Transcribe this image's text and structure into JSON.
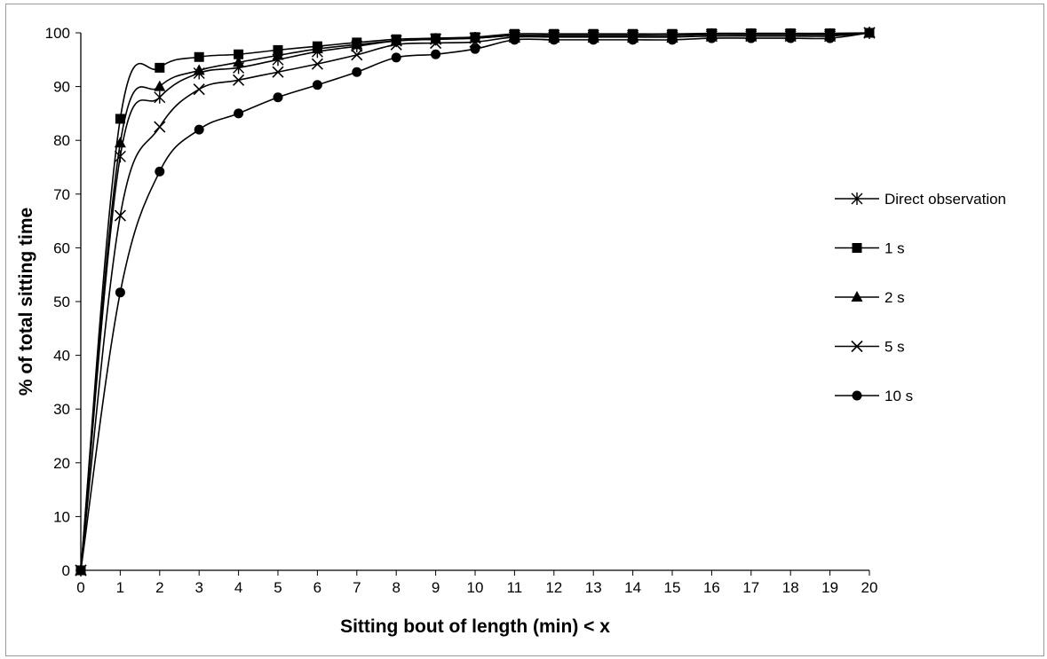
{
  "chart_data": {
    "type": "line",
    "title": "",
    "xlabel": "Sitting bout of length (min) < x",
    "ylabel": "% of total sitting time",
    "x": [
      0,
      1,
      2,
      3,
      4,
      5,
      6,
      7,
      8,
      9,
      10,
      11,
      12,
      13,
      14,
      15,
      16,
      17,
      18,
      19,
      20
    ],
    "xlim": [
      0,
      20
    ],
    "ylim": [
      0,
      100
    ],
    "yticks": [
      0,
      10,
      20,
      30,
      40,
      50,
      60,
      70,
      80,
      90,
      100
    ],
    "grid": false,
    "legend_position": "right",
    "series": [
      {
        "name": "Direct observation",
        "marker": "asterisk",
        "values": [
          0,
          77,
          88,
          92.5,
          93.5,
          95,
          96.5,
          97.5,
          98.5,
          98.8,
          99,
          99.5,
          99.5,
          99.5,
          99.5,
          99.5,
          99.7,
          99.7,
          99.7,
          99.7,
          100
        ]
      },
      {
        "name": "1 s",
        "marker": "square",
        "values": [
          0,
          84,
          93.5,
          95.5,
          96,
          96.8,
          97.5,
          98.2,
          98.8,
          99,
          99.2,
          99.8,
          99.8,
          99.8,
          99.8,
          99.8,
          99.9,
          99.9,
          99.9,
          99.9,
          100
        ]
      },
      {
        "name": "2 s",
        "marker": "triangle",
        "values": [
          0,
          79.5,
          90,
          93,
          94.5,
          95.8,
          97,
          97.8,
          98.5,
          98.8,
          99,
          99.5,
          99.5,
          99.5,
          99.5,
          99.5,
          99.7,
          99.7,
          99.7,
          99.7,
          100
        ]
      },
      {
        "name": "5 s",
        "marker": "x",
        "values": [
          0,
          66,
          82.5,
          89.5,
          91.2,
          92.7,
          94.2,
          95.9,
          97.8,
          98.1,
          98.3,
          99.2,
          99.2,
          99.2,
          99.2,
          99.2,
          99.4,
          99.4,
          99.4,
          99.4,
          100
        ]
      },
      {
        "name": "10 s",
        "marker": "circle",
        "values": [
          0,
          51.7,
          74.2,
          82,
          85,
          88,
          90.3,
          92.7,
          95.4,
          96,
          97,
          98.7,
          98.7,
          98.7,
          98.7,
          98.7,
          99,
          99,
          99,
          99,
          100
        ]
      }
    ]
  }
}
